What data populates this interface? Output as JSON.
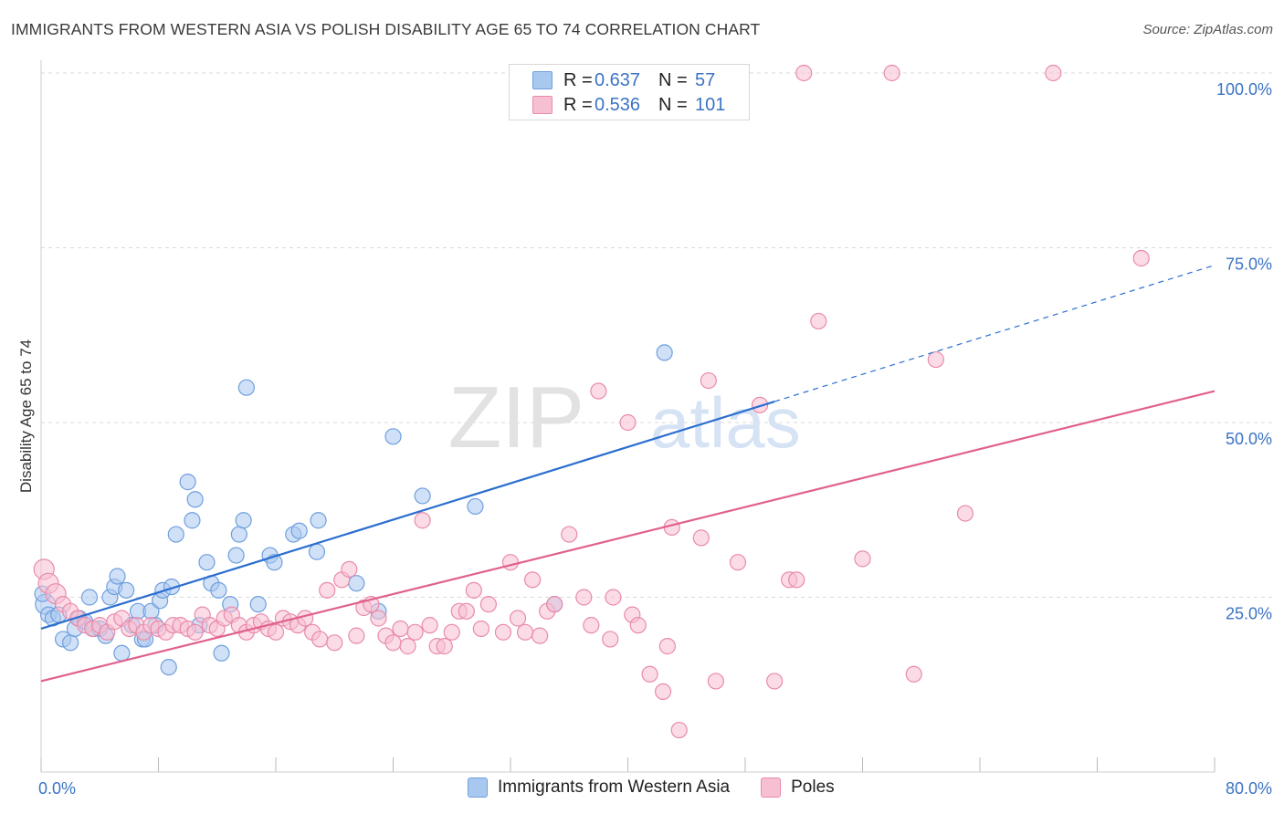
{
  "title": "IMMIGRANTS FROM WESTERN ASIA VS POLISH DISABILITY AGE 65 TO 74 CORRELATION CHART",
  "source": "Source: ZipAtlas.com",
  "colors": {
    "blue_fill": "#a9c8f0",
    "blue_stroke": "#6f9fde",
    "blue_line": "#2b6ecf",
    "pink_fill": "#f7bfd2",
    "pink_stroke": "#e98aaa",
    "pink_line": "#e0608e",
    "axis_label": "#3b73c4",
    "grid": "#d9d9d9"
  },
  "legend": {
    "rows": [
      {
        "r_label": "R =",
        "r_value": "0.637",
        "n_label": "N =",
        "n_value": "57"
      },
      {
        "r_label": "R =",
        "r_value": "0.536",
        "n_label": "N =",
        "n_value": "101"
      }
    ]
  },
  "bottom_legend": [
    "Immigrants from Western Asia",
    "Poles"
  ],
  "chart_data": {
    "type": "scatter",
    "ylabel": "Disability Age 65 to 74",
    "xlim": [
      0,
      80
    ],
    "ylim": [
      0,
      100
    ],
    "x_tick_labels": [
      "0.0%",
      "80.0%"
    ],
    "y_tick_labels": [
      "25.0%",
      "50.0%",
      "75.0%",
      "100.0%"
    ],
    "y_ticks": [
      25,
      50,
      75,
      100
    ],
    "grid": true,
    "watermark": "ZIPatlas",
    "series": [
      {
        "name": "Immigrants from Western Asia",
        "color": "#a9c8f0",
        "trend": {
          "x0": 0,
          "y0": 20.5,
          "x1": 50,
          "y1": 53.0,
          "dash_to_x": 80,
          "dash_to_y": 72.5
        },
        "points": [
          [
            0.3,
            24.0
          ],
          [
            0.5,
            22.5
          ],
          [
            0.8,
            22.0
          ],
          [
            1.2,
            22.5
          ],
          [
            1.5,
            19.0
          ],
          [
            2.0,
            18.5
          ],
          [
            2.3,
            20.5
          ],
          [
            2.6,
            22.0
          ],
          [
            3.0,
            21.5
          ],
          [
            3.3,
            25.0
          ],
          [
            3.6,
            20.5
          ],
          [
            4.0,
            20.5
          ],
          [
            4.4,
            19.5
          ],
          [
            4.7,
            25.0
          ],
          [
            5.0,
            26.5
          ],
          [
            5.2,
            28.0
          ],
          [
            5.5,
            17.0
          ],
          [
            5.8,
            26.0
          ],
          [
            6.2,
            21.0
          ],
          [
            6.6,
            23.0
          ],
          [
            6.9,
            19.0
          ],
          [
            7.1,
            19.0
          ],
          [
            7.5,
            23.0
          ],
          [
            7.8,
            21.0
          ],
          [
            8.1,
            24.5
          ],
          [
            8.3,
            26.0
          ],
          [
            8.7,
            15.0
          ],
          [
            8.9,
            26.5
          ],
          [
            9.2,
            34.0
          ],
          [
            10.0,
            41.5
          ],
          [
            10.3,
            36.0
          ],
          [
            10.5,
            39.0
          ],
          [
            10.8,
            21.0
          ],
          [
            11.3,
            30.0
          ],
          [
            11.6,
            27.0
          ],
          [
            12.1,
            26.0
          ],
          [
            12.3,
            17.0
          ],
          [
            12.9,
            24.0
          ],
          [
            13.3,
            31.0
          ],
          [
            13.5,
            34.0
          ],
          [
            13.8,
            36.0
          ],
          [
            14.0,
            55.0
          ],
          [
            14.8,
            24.0
          ],
          [
            15.6,
            31.0
          ],
          [
            15.9,
            30.0
          ],
          [
            17.2,
            34.0
          ],
          [
            17.6,
            34.5
          ],
          [
            18.8,
            31.5
          ],
          [
            18.9,
            36.0
          ],
          [
            21.5,
            27.0
          ],
          [
            23.0,
            23.0
          ],
          [
            24.0,
            48.0
          ],
          [
            26.0,
            39.5
          ],
          [
            29.6,
            38.0
          ],
          [
            35.0,
            24.0
          ],
          [
            42.5,
            60.0
          ],
          [
            0.1,
            25.5
          ]
        ]
      },
      {
        "name": "Poles",
        "color": "#f7bfd2",
        "trend": {
          "x0": 0,
          "y0": 13.0,
          "x1": 80,
          "y1": 54.5
        },
        "points": [
          [
            0.2,
            29.0
          ],
          [
            0.5,
            27.0
          ],
          [
            1.0,
            25.5
          ],
          [
            1.5,
            24.0
          ],
          [
            2.0,
            23.0
          ],
          [
            2.5,
            22.0
          ],
          [
            3.0,
            21.0
          ],
          [
            3.5,
            20.5
          ],
          [
            4.0,
            21.0
          ],
          [
            4.5,
            20.0
          ],
          [
            5.0,
            21.5
          ],
          [
            5.5,
            22.0
          ],
          [
            6.0,
            20.5
          ],
          [
            6.5,
            21.0
          ],
          [
            7.0,
            20.0
          ],
          [
            7.5,
            21.0
          ],
          [
            8.0,
            20.5
          ],
          [
            8.5,
            20.0
          ],
          [
            9.0,
            21.0
          ],
          [
            9.5,
            21.0
          ],
          [
            10.0,
            20.5
          ],
          [
            10.5,
            20.0
          ],
          [
            11.0,
            22.5
          ],
          [
            11.5,
            21.0
          ],
          [
            12.0,
            20.5
          ],
          [
            12.5,
            22.0
          ],
          [
            13.0,
            22.5
          ],
          [
            13.5,
            21.0
          ],
          [
            14.0,
            20.0
          ],
          [
            14.5,
            21.0
          ],
          [
            15.0,
            21.5
          ],
          [
            15.5,
            20.5
          ],
          [
            16.0,
            20.0
          ],
          [
            16.5,
            22.0
          ],
          [
            17.0,
            21.5
          ],
          [
            17.5,
            21.0
          ],
          [
            18.0,
            22.0
          ],
          [
            18.5,
            20.0
          ],
          [
            19.0,
            19.0
          ],
          [
            19.5,
            26.0
          ],
          [
            20.0,
            18.5
          ],
          [
            20.5,
            27.5
          ],
          [
            21.0,
            29.0
          ],
          [
            21.5,
            19.5
          ],
          [
            22.0,
            23.5
          ],
          [
            22.5,
            24.0
          ],
          [
            23.0,
            22.0
          ],
          [
            23.5,
            19.5
          ],
          [
            24.0,
            18.5
          ],
          [
            24.5,
            20.5
          ],
          [
            25.0,
            18.0
          ],
          [
            25.5,
            20.0
          ],
          [
            26.0,
            36.0
          ],
          [
            26.5,
            21.0
          ],
          [
            27.0,
            18.0
          ],
          [
            27.5,
            18.0
          ],
          [
            28.0,
            20.0
          ],
          [
            28.5,
            23.0
          ],
          [
            29.0,
            23.0
          ],
          [
            29.5,
            26.0
          ],
          [
            30.0,
            20.5
          ],
          [
            30.5,
            24.0
          ],
          [
            31.5,
            20.0
          ],
          [
            32.0,
            30.0
          ],
          [
            32.5,
            22.0
          ],
          [
            33.0,
            20.0
          ],
          [
            33.5,
            27.5
          ],
          [
            34.0,
            19.5
          ],
          [
            34.5,
            23.0
          ],
          [
            35.0,
            24.0
          ],
          [
            36.0,
            34.0
          ],
          [
            37.0,
            25.0
          ],
          [
            37.5,
            21.0
          ],
          [
            38.0,
            54.5
          ],
          [
            38.8,
            19.0
          ],
          [
            39.0,
            25.0
          ],
          [
            40.0,
            50.0
          ],
          [
            40.3,
            22.5
          ],
          [
            40.7,
            21.0
          ],
          [
            41.5,
            14.0
          ],
          [
            42.4,
            11.5
          ],
          [
            42.7,
            18.0
          ],
          [
            43.0,
            35.0
          ],
          [
            43.5,
            6.0
          ],
          [
            45.0,
            33.5
          ],
          [
            45.5,
            56.0
          ],
          [
            46.0,
            13.0
          ],
          [
            47.5,
            30.0
          ],
          [
            49.0,
            52.5
          ],
          [
            50.0,
            13.0
          ],
          [
            51.0,
            27.5
          ],
          [
            51.5,
            27.5
          ],
          [
            52.0,
            100.0
          ],
          [
            53.0,
            64.5
          ],
          [
            56.0,
            30.5
          ],
          [
            58.0,
            100.0
          ],
          [
            59.5,
            14.0
          ],
          [
            61.0,
            59.0
          ],
          [
            63.0,
            37.0
          ],
          [
            69.0,
            100.0
          ],
          [
            75.0,
            73.5
          ]
        ]
      }
    ]
  }
}
